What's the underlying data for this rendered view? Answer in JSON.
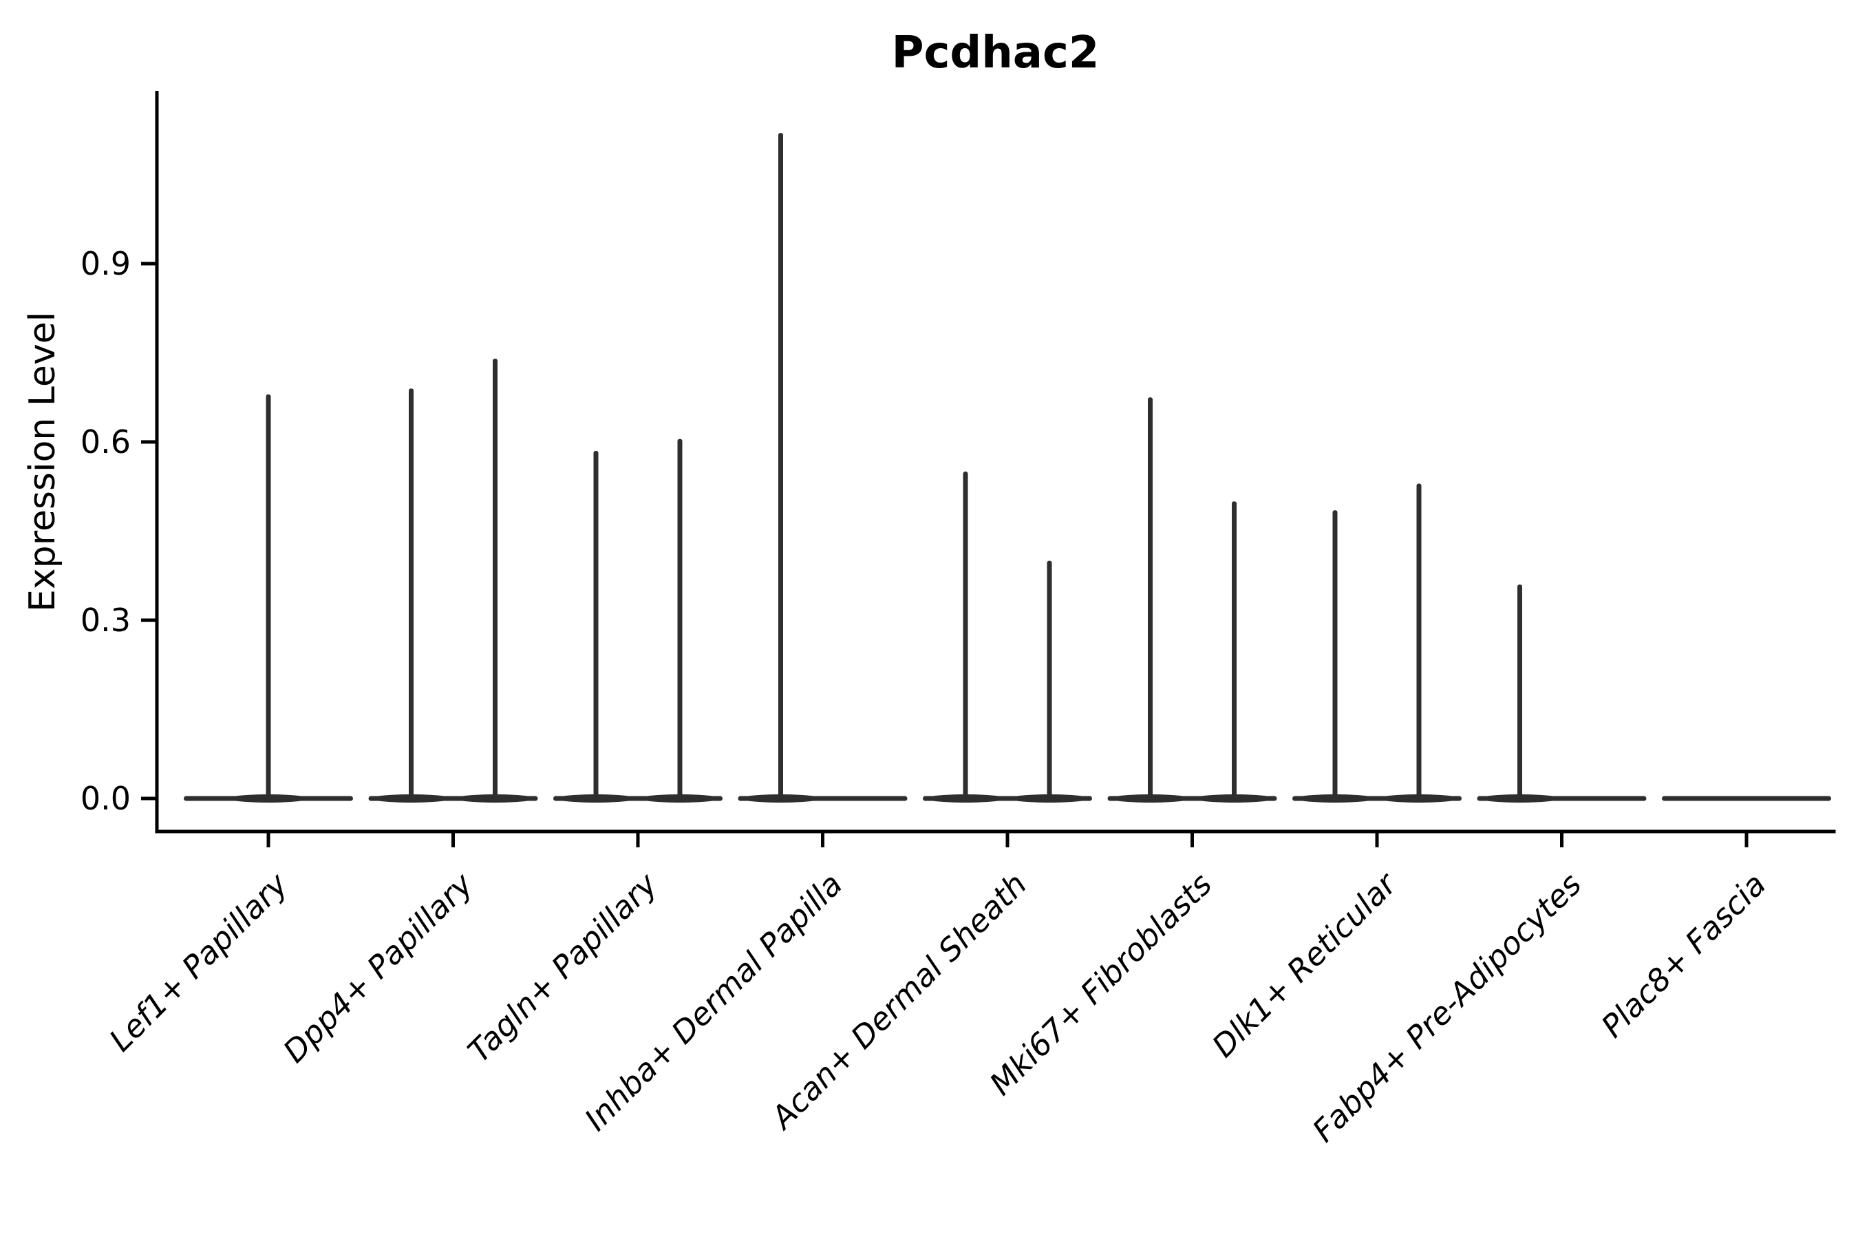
{
  "figure": {
    "title": "Pcdhac2"
  },
  "chart_data": {
    "type": "violin",
    "title": "Pcdhac2",
    "subtitle": "",
    "xlabel": "",
    "ylabel": "Expression Level",
    "yticks": [
      0.0,
      0.3,
      0.6,
      0.9
    ],
    "ytick_labels": [
      "0.0",
      "0.3",
      "0.6",
      "0.9"
    ],
    "ylim": [
      0,
      1.19
    ],
    "grid": false,
    "legend": "none",
    "categories": [
      "Lef1+ Papillary",
      "Dpp4+ Papillary",
      "Tagln+ Papillary",
      "Inhba+ Dermal Papilla",
      "Acan+ Dermal Sheath",
      "Mki67+ Fibroblasts",
      "Dlk1+ Reticular",
      "Fabp4+ Pre-Adipocytes",
      "Plac8+ Fascia"
    ],
    "baseline_value": 0.0,
    "violins": [
      {
        "category": "Lef1+ Papillary",
        "spikes": [
          {
            "position": "center",
            "max": 0.68
          }
        ]
      },
      {
        "category": "Dpp4+ Papillary",
        "spikes": [
          {
            "position": "left",
            "max": 0.69
          },
          {
            "position": "right",
            "max": 0.74
          }
        ]
      },
      {
        "category": "Tagln+ Papillary",
        "spikes": [
          {
            "position": "left",
            "max": 0.585
          },
          {
            "position": "right",
            "max": 0.605
          }
        ]
      },
      {
        "category": "Inhba+ Dermal Papilla",
        "spikes": [
          {
            "position": "left",
            "max": 1.12
          }
        ]
      },
      {
        "category": "Acan+ Dermal Sheath",
        "spikes": [
          {
            "position": "left",
            "max": 0.55
          },
          {
            "position": "right",
            "max": 0.4
          }
        ]
      },
      {
        "category": "Mki67+ Fibroblasts",
        "spikes": [
          {
            "position": "left",
            "max": 0.675
          },
          {
            "position": "right",
            "max": 0.5
          }
        ]
      },
      {
        "category": "Dlk1+ Reticular",
        "spikes": [
          {
            "position": "left",
            "max": 0.485
          },
          {
            "position": "right",
            "max": 0.53
          }
        ]
      },
      {
        "category": "Fabp4+ Pre-Adipocytes",
        "spikes": [
          {
            "position": "left",
            "max": 0.36
          }
        ]
      },
      {
        "category": "Plac8+ Fascia",
        "spikes": []
      }
    ],
    "colors": {
      "violin": "#2e2e2e",
      "axis": "#000000",
      "text": "#000000"
    }
  }
}
